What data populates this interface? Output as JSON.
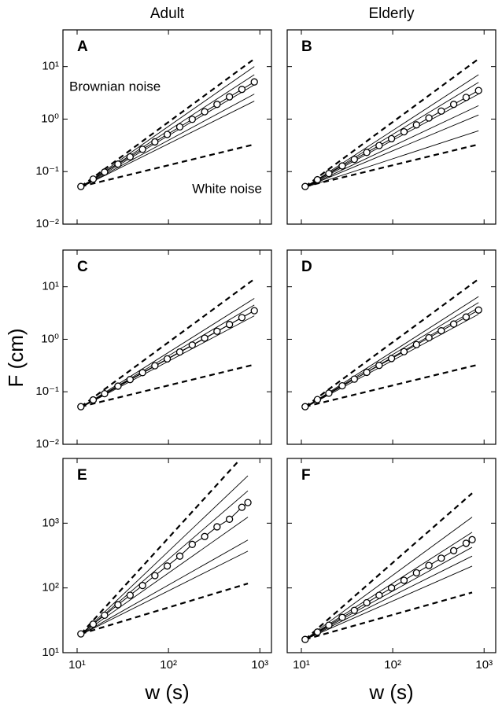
{
  "ylabel": "F (cm)",
  "chart_data": [
    {
      "type": "line",
      "label": "A",
      "title": "Adult",
      "xscale": "log",
      "yscale": "log",
      "xlim": [
        7,
        1340
      ],
      "ylim": [
        0.01,
        50
      ],
      "xticks": [
        10,
        100,
        1000
      ],
      "yticks": [
        {
          "value": 0.01,
          "label": "10⁻²"
        },
        {
          "value": 0.1,
          "label": "10⁻¹"
        },
        {
          "value": 1,
          "label": "10⁰"
        },
        {
          "value": 10,
          "label": "10¹"
        }
      ],
      "annotations": [
        "Brownian noise",
        "White noise"
      ],
      "series": [
        {
          "style": "solid",
          "color": "#000",
          "x": [
            11,
            870
          ],
          "values": [
            0.05,
            10
          ]
        },
        {
          "style": "solid",
          "color": "#000",
          "x": [
            11,
            870
          ],
          "values": [
            0.05,
            7
          ]
        },
        {
          "style": "solid",
          "color": "#000",
          "x": [
            11,
            870
          ],
          "values": [
            0.05,
            4.5
          ]
        },
        {
          "style": "solid",
          "color": "#000",
          "x": [
            11,
            870
          ],
          "values": [
            0.05,
            3
          ]
        },
        {
          "style": "solid",
          "color": "#000",
          "x": [
            11,
            870
          ],
          "values": [
            0.05,
            2.2
          ]
        },
        {
          "style": "dashed",
          "color": "#000",
          "x": [
            11,
            870
          ],
          "values": [
            0.052,
            14
          ]
        },
        {
          "style": "dashed",
          "color": "#000",
          "x": [
            11,
            870
          ],
          "values": [
            0.052,
            0.33
          ]
        },
        {
          "style": "circle",
          "color": "#000",
          "x": [
            11,
            15,
            20,
            28,
            38,
            52,
            71,
            97,
            133,
            182,
            249,
            340,
            465,
            636,
            870
          ],
          "values": [
            0.052,
            0.072,
            0.098,
            0.139,
            0.191,
            0.266,
            0.368,
            0.51,
            0.71,
            0.99,
            1.38,
            1.91,
            2.65,
            3.68,
            5.1
          ]
        }
      ]
    },
    {
      "type": "line",
      "label": "B",
      "title": "Elderly",
      "xscale": "log",
      "yscale": "log",
      "xlim": [
        7,
        1340
      ],
      "ylim": [
        0.01,
        50
      ],
      "xticks": [
        10,
        100,
        1000
      ],
      "yticks": [
        0.01,
        0.1,
        1,
        10
      ],
      "series": [
        {
          "style": "solid",
          "color": "#000",
          "x": [
            11,
            870
          ],
          "values": [
            0.05,
            7
          ]
        },
        {
          "style": "solid",
          "color": "#000",
          "x": [
            11,
            870
          ],
          "values": [
            0.05,
            5
          ]
        },
        {
          "style": "solid",
          "color": "#000",
          "x": [
            11,
            870
          ],
          "values": [
            0.05,
            3
          ]
        },
        {
          "style": "solid",
          "color": "#000",
          "x": [
            11,
            870
          ],
          "values": [
            0.05,
            1.8
          ]
        },
        {
          "style": "solid",
          "color": "#000",
          "x": [
            11,
            870
          ],
          "values": [
            0.05,
            1.2
          ]
        },
        {
          "style": "solid",
          "color": "#000",
          "x": [
            11,
            870
          ],
          "values": [
            0.05,
            0.6
          ]
        },
        {
          "style": "dashed",
          "color": "#000",
          "x": [
            11,
            870
          ],
          "values": [
            0.052,
            14
          ]
        },
        {
          "style": "dashed",
          "color": "#000",
          "x": [
            11,
            870
          ],
          "values": [
            0.052,
            0.33
          ]
        },
        {
          "style": "circle",
          "color": "#000",
          "x": [
            11,
            15,
            20,
            28,
            38,
            52,
            71,
            97,
            133,
            182,
            249,
            340,
            465,
            636,
            870
          ],
          "values": [
            0.052,
            0.07,
            0.092,
            0.128,
            0.171,
            0.232,
            0.313,
            0.423,
            0.573,
            0.776,
            1.05,
            1.42,
            1.91,
            2.59,
            3.5
          ]
        }
      ]
    },
    {
      "type": "line",
      "label": "C",
      "xscale": "log",
      "yscale": "log",
      "xlim": [
        7,
        1340
      ],
      "ylim": [
        0.01,
        50
      ],
      "xticks": [
        10,
        100,
        1000
      ],
      "yticks": [
        {
          "value": 0.01,
          "label": "10⁻²"
        },
        {
          "value": 0.1,
          "label": "10⁻¹"
        },
        {
          "value": 1,
          "label": "10⁰"
        },
        {
          "value": 10,
          "label": "10¹"
        }
      ],
      "series": [
        {
          "style": "solid",
          "color": "#000",
          "x": [
            11,
            870
          ],
          "values": [
            0.05,
            6
          ]
        },
        {
          "style": "solid",
          "color": "#000",
          "x": [
            11,
            870
          ],
          "values": [
            0.05,
            4.5
          ]
        },
        {
          "style": "solid",
          "color": "#000",
          "x": [
            11,
            870
          ],
          "values": [
            0.05,
            3.5
          ]
        },
        {
          "style": "solid",
          "color": "#000",
          "x": [
            11,
            870
          ],
          "values": [
            0.05,
            2.8
          ]
        },
        {
          "style": "dashed",
          "color": "#000",
          "x": [
            11,
            870
          ],
          "values": [
            0.052,
            14
          ]
        },
        {
          "style": "dashed",
          "color": "#000",
          "x": [
            11,
            870
          ],
          "values": [
            0.052,
            0.33
          ]
        },
        {
          "style": "circle",
          "color": "#000",
          "x": [
            11,
            15,
            20,
            28,
            38,
            52,
            71,
            97,
            133,
            182,
            249,
            340,
            465,
            636,
            870
          ],
          "values": [
            0.052,
            0.07,
            0.092,
            0.128,
            0.171,
            0.232,
            0.313,
            0.423,
            0.573,
            0.776,
            1.05,
            1.42,
            1.91,
            2.59,
            3.5
          ]
        }
      ]
    },
    {
      "type": "line",
      "label": "D",
      "xscale": "log",
      "yscale": "log",
      "xlim": [
        7,
        1340
      ],
      "ylim": [
        0.01,
        50
      ],
      "xticks": [
        10,
        100,
        1000
      ],
      "yticks": [
        0.01,
        0.1,
        1,
        10
      ],
      "series": [
        {
          "style": "solid",
          "color": "#000",
          "x": [
            11,
            870
          ],
          "values": [
            0.05,
            6.5
          ]
        },
        {
          "style": "solid",
          "color": "#000",
          "x": [
            11,
            870
          ],
          "values": [
            0.05,
            5
          ]
        },
        {
          "style": "solid",
          "color": "#000",
          "x": [
            11,
            870
          ],
          "values": [
            0.05,
            4
          ]
        },
        {
          "style": "solid",
          "color": "#000",
          "x": [
            11,
            870
          ],
          "values": [
            0.05,
            3
          ]
        },
        {
          "style": "dashed",
          "color": "#000",
          "x": [
            11,
            870
          ],
          "values": [
            0.052,
            14
          ]
        },
        {
          "style": "dashed",
          "color": "#000",
          "x": [
            11,
            870
          ],
          "values": [
            0.052,
            0.33
          ]
        },
        {
          "style": "circle",
          "color": "#000",
          "x": [
            11,
            15,
            20,
            28,
            38,
            52,
            71,
            97,
            133,
            182,
            249,
            340,
            465,
            636,
            870
          ],
          "values": [
            0.052,
            0.071,
            0.094,
            0.13,
            0.174,
            0.235,
            0.318,
            0.43,
            0.58,
            0.79,
            1.07,
            1.45,
            1.95,
            2.65,
            3.6
          ]
        }
      ]
    },
    {
      "type": "line",
      "label": "E",
      "xlabel": "w (s)",
      "xscale": "log",
      "yscale": "log",
      "xlim": [
        7,
        1340
      ],
      "ylim": [
        10,
        10000
      ],
      "xticks": [
        {
          "value": 10,
          "label": "10¹"
        },
        {
          "value": 100,
          "label": "10²"
        },
        {
          "value": 1000,
          "label": "10³"
        }
      ],
      "yticks": [
        {
          "value": 10,
          "label": "10¹"
        },
        {
          "value": 100,
          "label": "10²"
        },
        {
          "value": 1000,
          "label": "10³"
        }
      ],
      "series": [
        {
          "style": "solid",
          "color": "#000",
          "x": [
            11,
            740
          ],
          "values": [
            19,
            5400
          ]
        },
        {
          "style": "solid",
          "color": "#000",
          "x": [
            11,
            740
          ],
          "values": [
            19,
            3160
          ]
        },
        {
          "style": "solid",
          "color": "#000",
          "x": [
            11,
            740
          ],
          "values": [
            19,
            1240
          ]
        },
        {
          "style": "solid",
          "color": "#000",
          "x": [
            11,
            740
          ],
          "values": [
            19,
            550
          ]
        },
        {
          "style": "solid",
          "color": "#000",
          "x": [
            11,
            740
          ],
          "values": [
            19,
            370
          ]
        },
        {
          "style": "dashed",
          "color": "#000",
          "x": [
            11,
            600
          ],
          "values": [
            19.5,
            9500
          ]
        },
        {
          "style": "dashed",
          "color": "#000",
          "x": [
            11,
            740
          ],
          "values": [
            19.5,
            117
          ]
        },
        {
          "style": "circle",
          "color": "#000",
          "x": [
            11,
            15,
            20,
            28,
            38,
            52,
            71,
            97,
            133,
            182,
            249,
            340,
            465,
            636,
            740
          ],
          "values": [
            19.5,
            27.6,
            37.9,
            55,
            77,
            109,
            155,
            218,
            310,
            470,
            622,
            879,
            1150,
            1760,
            2080
          ]
        }
      ]
    },
    {
      "type": "line",
      "label": "F",
      "xlabel": "w (s)",
      "xscale": "log",
      "yscale": "log",
      "xlim": [
        7,
        1340
      ],
      "ylim": [
        10,
        10000
      ],
      "xticks": [
        {
          "value": 10,
          "label": "10¹"
        },
        {
          "value": 100,
          "label": "10²"
        },
        {
          "value": 1000,
          "label": "10³"
        }
      ],
      "yticks": [
        10,
        100,
        1000
      ],
      "series": [
        {
          "style": "solid",
          "color": "#000",
          "x": [
            11,
            740
          ],
          "values": [
            16,
            1240
          ]
        },
        {
          "style": "solid",
          "color": "#000",
          "x": [
            11,
            740
          ],
          "values": [
            16,
            725
          ]
        },
        {
          "style": "solid",
          "color": "#000",
          "x": [
            11,
            740
          ],
          "values": [
            16,
            425
          ]
        },
        {
          "style": "solid",
          "color": "#000",
          "x": [
            11,
            740
          ],
          "values": [
            16,
            310
          ]
        },
        {
          "style": "solid",
          "color": "#000",
          "x": [
            11,
            740
          ],
          "values": [
            16,
            217
          ]
        },
        {
          "style": "dashed",
          "color": "#000",
          "x": [
            11,
            740
          ],
          "values": [
            16,
            2900
          ]
        },
        {
          "style": "dashed",
          "color": "#000",
          "x": [
            11,
            740
          ],
          "values": [
            16,
            85
          ]
        },
        {
          "style": "circle",
          "color": "#000",
          "x": [
            11,
            15,
            20,
            28,
            38,
            52,
            71,
            97,
            133,
            182,
            249,
            340,
            465,
            636,
            740
          ],
          "values": [
            16,
            20.8,
            26.5,
            35,
            45,
            59,
            77,
            100,
            131,
            171,
            222,
            288,
            376,
            489,
            556
          ]
        }
      ]
    }
  ]
}
